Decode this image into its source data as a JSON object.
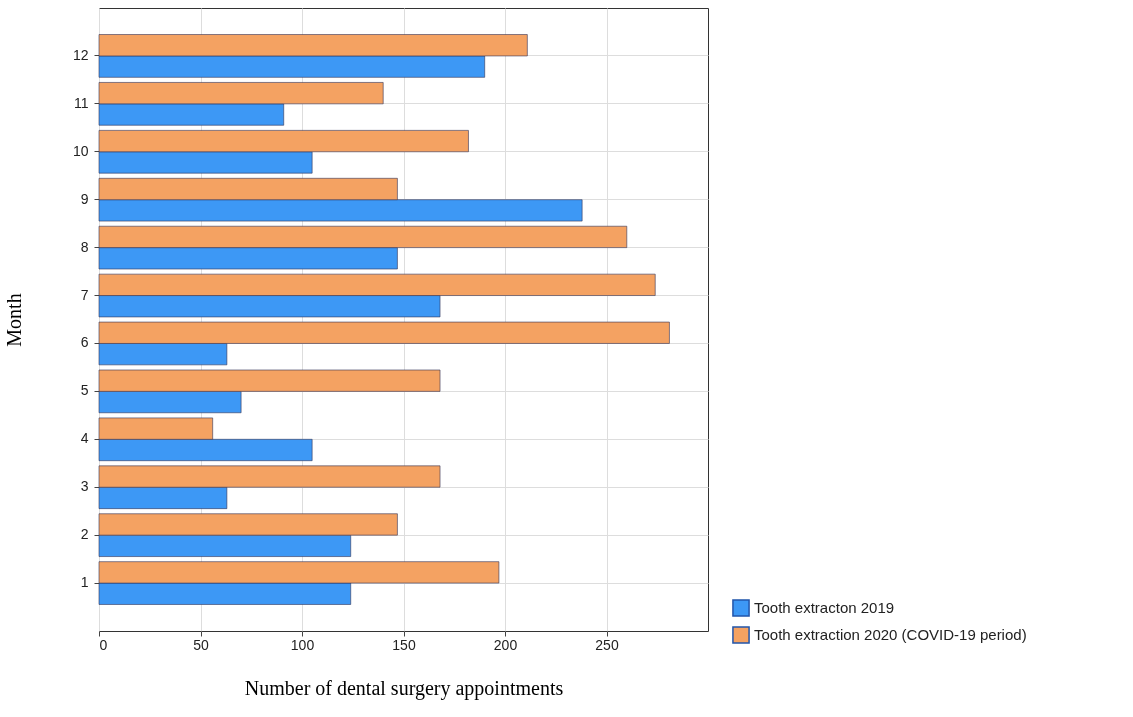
{
  "chart_data": {
    "type": "bar",
    "orientation": "horizontal",
    "ylabel": "Month",
    "xlabel": "Number of dental surgery appointments",
    "categories": [
      "12",
      "11",
      "10",
      "9",
      "8",
      "7",
      "6",
      "5",
      "4",
      "3",
      "2",
      "1"
    ],
    "series": [
      {
        "name": "Tooth extracton 2019",
        "color": "#3d98f5",
        "values": [
          190,
          91,
          105,
          238,
          147,
          168,
          63,
          70,
          105,
          63,
          124,
          124
        ]
      },
      {
        "name": "Tooth extraction 2020 (COVID-19 period)",
        "color": "#f4a262",
        "values": [
          211,
          140,
          182,
          147,
          260,
          274,
          281,
          168,
          56,
          168,
          147,
          197
        ]
      }
    ],
    "xlim": [
      0,
      300
    ],
    "xticks": [
      0,
      50,
      100,
      150,
      200,
      250
    ],
    "grid": true,
    "legend": "bottom right"
  }
}
